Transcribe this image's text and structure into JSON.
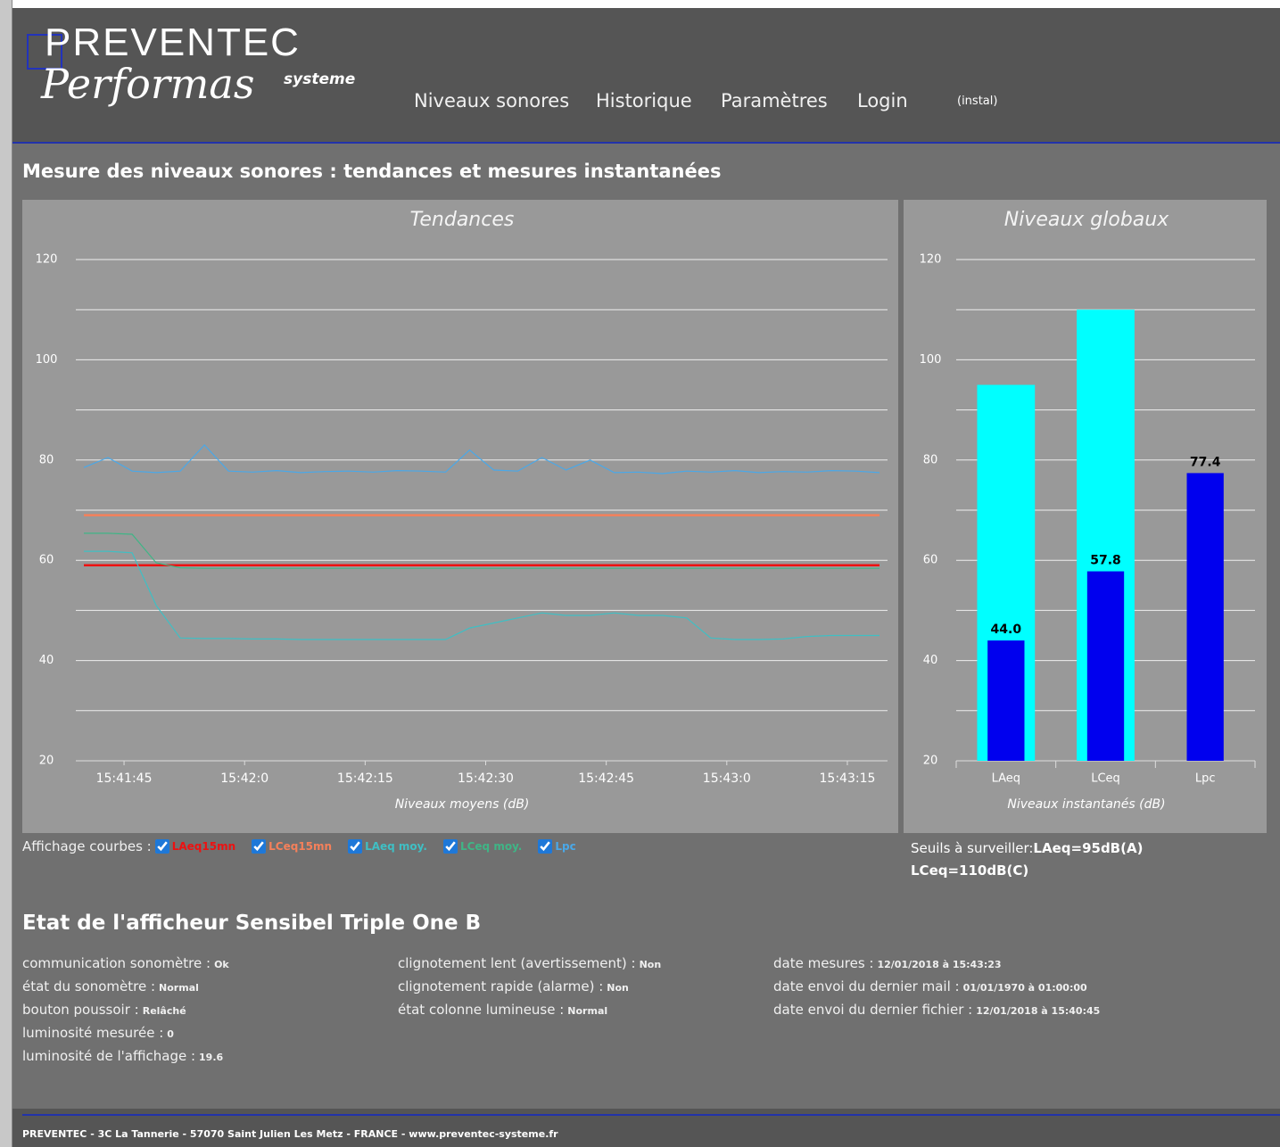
{
  "header": {
    "logo_top": "PREVENTEC",
    "logo_main": "Performas",
    "logo_sup": "systeme",
    "nav": [
      "Niveaux sonores",
      "Historique",
      "Paramètres",
      "Login"
    ],
    "user": "(instal)"
  },
  "page_title": "Mesure des niveaux sonores : tendances et mesures instantanées",
  "chart_data": [
    {
      "type": "line",
      "title": "Tendances",
      "xlabel": "Niveaux moyens (dB)",
      "x": [
        56500,
        56503,
        56506,
        56509,
        56512,
        56515,
        56518,
        56521,
        56524,
        56527,
        56530,
        56533,
        56536,
        56539,
        56542,
        56545,
        56548,
        56551,
        56554,
        56557,
        56560,
        56563,
        56566,
        56569,
        56572,
        56575,
        56578,
        56581,
        56584,
        56587,
        56590,
        56593,
        56596,
        56599
      ],
      "xlim": [
        56499,
        56600
      ],
      "xticks": [
        {
          "value": 56505,
          "label": "15:41:45"
        },
        {
          "value": 56520,
          "label": "15:42:0"
        },
        {
          "value": 56535,
          "label": "15:42:15"
        },
        {
          "value": 56550,
          "label": "15:42:30"
        },
        {
          "value": 56565,
          "label": "15:42:45"
        },
        {
          "value": 56580,
          "label": "15:43:0"
        },
        {
          "value": 56595,
          "label": "15:43:15"
        }
      ],
      "ylim": [
        20,
        120
      ],
      "yticks": [
        20,
        40,
        60,
        80,
        100,
        120
      ],
      "yticks_minor": [
        30,
        50,
        70,
        90,
        110
      ],
      "grid": true,
      "series": [
        {
          "name": "LAeq15mn",
          "color": "#ee1111",
          "values": [
            59,
            59,
            59,
            59,
            59,
            59,
            59,
            59,
            59,
            59,
            59,
            59,
            59,
            59,
            59,
            59,
            59,
            59,
            59,
            59,
            59,
            59,
            59,
            59,
            59,
            59,
            59,
            59,
            59,
            59,
            59,
            59,
            59,
            59
          ]
        },
        {
          "name": "LCeq15mn",
          "color": "#f5805a",
          "values": [
            69,
            69,
            69,
            69,
            69,
            69,
            69,
            69,
            69,
            69,
            69,
            69,
            69,
            69,
            69,
            69,
            69,
            69,
            69,
            69,
            69,
            69,
            69,
            69,
            69,
            69,
            69,
            69,
            69,
            69,
            69,
            69,
            69,
            69
          ]
        },
        {
          "name": "LAeq moy.",
          "color": "#3fbfc4",
          "values": [
            61.8,
            61.8,
            61.5,
            51,
            44.5,
            44.4,
            44.4,
            44.3,
            44.3,
            44.2,
            44.2,
            44.2,
            44.2,
            44.2,
            44.2,
            44.2,
            46.5,
            47.5,
            48.5,
            49.5,
            49,
            49,
            49.5,
            49,
            49,
            48.5,
            44.5,
            44.2,
            44.2,
            44.3,
            44.8,
            45,
            45,
            45
          ]
        },
        {
          "name": "LCeq moy.",
          "color": "#3fb586",
          "values": [
            65.4,
            65.4,
            65.2,
            59.5,
            58.5,
            58.4,
            58.4,
            58.4,
            58.4,
            58.4,
            58.4,
            58.4,
            58.4,
            58.4,
            58.4,
            58.4,
            58.4,
            58.4,
            58.4,
            58.4,
            58.4,
            58.4,
            58.4,
            58.4,
            58.4,
            58.4,
            58.4,
            58.4,
            58.4,
            58.4,
            58.4,
            58.4,
            58.4,
            58.4
          ]
        },
        {
          "name": "Lpc",
          "color": "#4aa8e8",
          "values": [
            78.5,
            80.5,
            77.8,
            77.5,
            77.8,
            83,
            77.8,
            77.6,
            77.9,
            77.5,
            77.7,
            77.8,
            77.6,
            77.9,
            77.8,
            77.6,
            82,
            78,
            77.8,
            80.5,
            78,
            80,
            77.5,
            77.6,
            77.3,
            77.8,
            77.6,
            77.9,
            77.5,
            77.7,
            77.6,
            77.9,
            77.8,
            77.5
          ]
        }
      ]
    },
    {
      "type": "bar",
      "title": "Niveaux globaux",
      "xlabel": "Niveaux instantanés (dB)",
      "categories": [
        "LAeq",
        "LCeq",
        "Lpc"
      ],
      "ylim": [
        20,
        120
      ],
      "yticks": [
        20,
        40,
        60,
        80,
        100,
        120
      ],
      "yticks_minor": [
        30,
        50,
        70,
        90,
        110
      ],
      "grid": true,
      "series": [
        {
          "color": "#00ffff",
          "values": [
            95,
            110,
            null
          ]
        },
        {
          "color": "#0000ee",
          "values": [
            44.0,
            57.8,
            77.4
          ],
          "value_labels": [
            "44.0",
            "57.8",
            "77.4"
          ]
        }
      ]
    }
  ],
  "legend_label": "Affichage courbes :",
  "thresholds": {
    "label": "Seuils à surveiller:",
    "values": [
      "LAeq=95dB(A)",
      "LCeq=110dB(C)"
    ]
  },
  "status": {
    "title": "Etat de l'afficheur Sensibel Triple One B",
    "columns": [
      [
        {
          "label": "communication sonomètre :",
          "value": "Ok"
        },
        {
          "label": "état du sonomètre :",
          "value": "Normal"
        },
        {
          "label": "bouton poussoir :",
          "value": "Relâché"
        },
        {
          "label": "luminosité mesurée :",
          "value": "0"
        },
        {
          "label": "luminosité de l'affichage :",
          "value": "19.6"
        }
      ],
      [
        {
          "label": "clignotement lent (avertissement) :",
          "value": "Non"
        },
        {
          "label": "clignotement rapide (alarme) :",
          "value": "Non"
        },
        {
          "label": "état colonne lumineuse :",
          "value": "Normal"
        }
      ],
      [
        {
          "label": "date mesures :",
          "value": "12/01/2018 à 15:43:23"
        },
        {
          "label": "date envoi du dernier mail :",
          "value": "01/01/1970 à 01:00:00"
        },
        {
          "label": "date envoi du dernier fichier :",
          "value": "12/01/2018 à 15:40:45"
        }
      ]
    ]
  },
  "footer": "PREVENTEC - 3C La Tannerie - 57070 Saint Julien Les Metz - FRANCE - www.preventec-systeme.fr"
}
